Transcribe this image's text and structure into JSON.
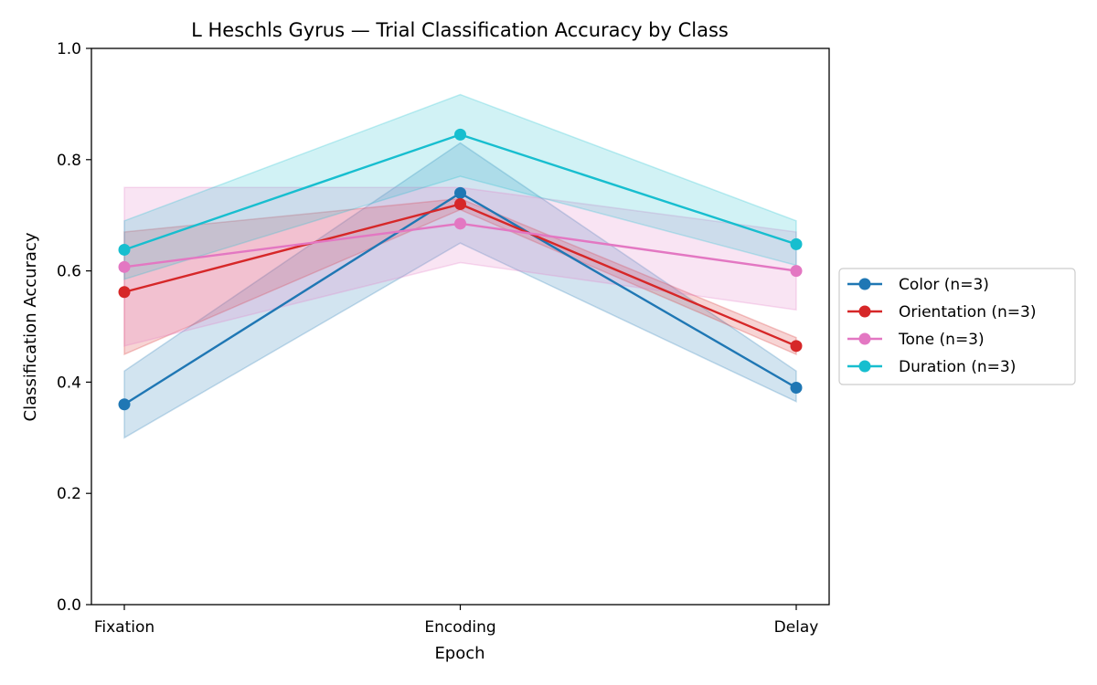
{
  "chart_data": {
    "type": "line",
    "title": "L Heschls Gyrus — Trial Classification Accuracy by Class",
    "xlabel": "Epoch",
    "ylabel": "Classification Accuracy",
    "categories": [
      "Fixation",
      "Encoding",
      "Delay"
    ],
    "ylim": [
      0,
      1
    ],
    "yticks": [
      "0.0",
      "0.2",
      "0.4",
      "0.6",
      "0.8",
      "1.0"
    ],
    "grid": false,
    "legend_position": "right",
    "series": [
      {
        "name": "Color (n=3)",
        "color": "#1f77b4",
        "values": [
          0.36,
          0.74,
          0.39
        ],
        "lower": [
          0.3,
          0.65,
          0.365
        ],
        "upper": [
          0.42,
          0.83,
          0.42
        ]
      },
      {
        "name": "Orientation (n=3)",
        "color": "#d62728",
        "values": [
          0.562,
          0.72,
          0.465
        ],
        "lower": [
          0.45,
          0.71,
          0.45
        ],
        "upper": [
          0.67,
          0.73,
          0.48
        ]
      },
      {
        "name": "Tone (n=3)",
        "color": "#e377c2",
        "values": [
          0.607,
          0.685,
          0.6
        ],
        "lower": [
          0.465,
          0.615,
          0.53
        ],
        "upper": [
          0.75,
          0.75,
          0.67
        ]
      },
      {
        "name": "Duration (n=3)",
        "color": "#17becf",
        "values": [
          0.638,
          0.845,
          0.648
        ],
        "lower": [
          0.585,
          0.77,
          0.61
        ],
        "upper": [
          0.69,
          0.917,
          0.69
        ]
      }
    ]
  }
}
